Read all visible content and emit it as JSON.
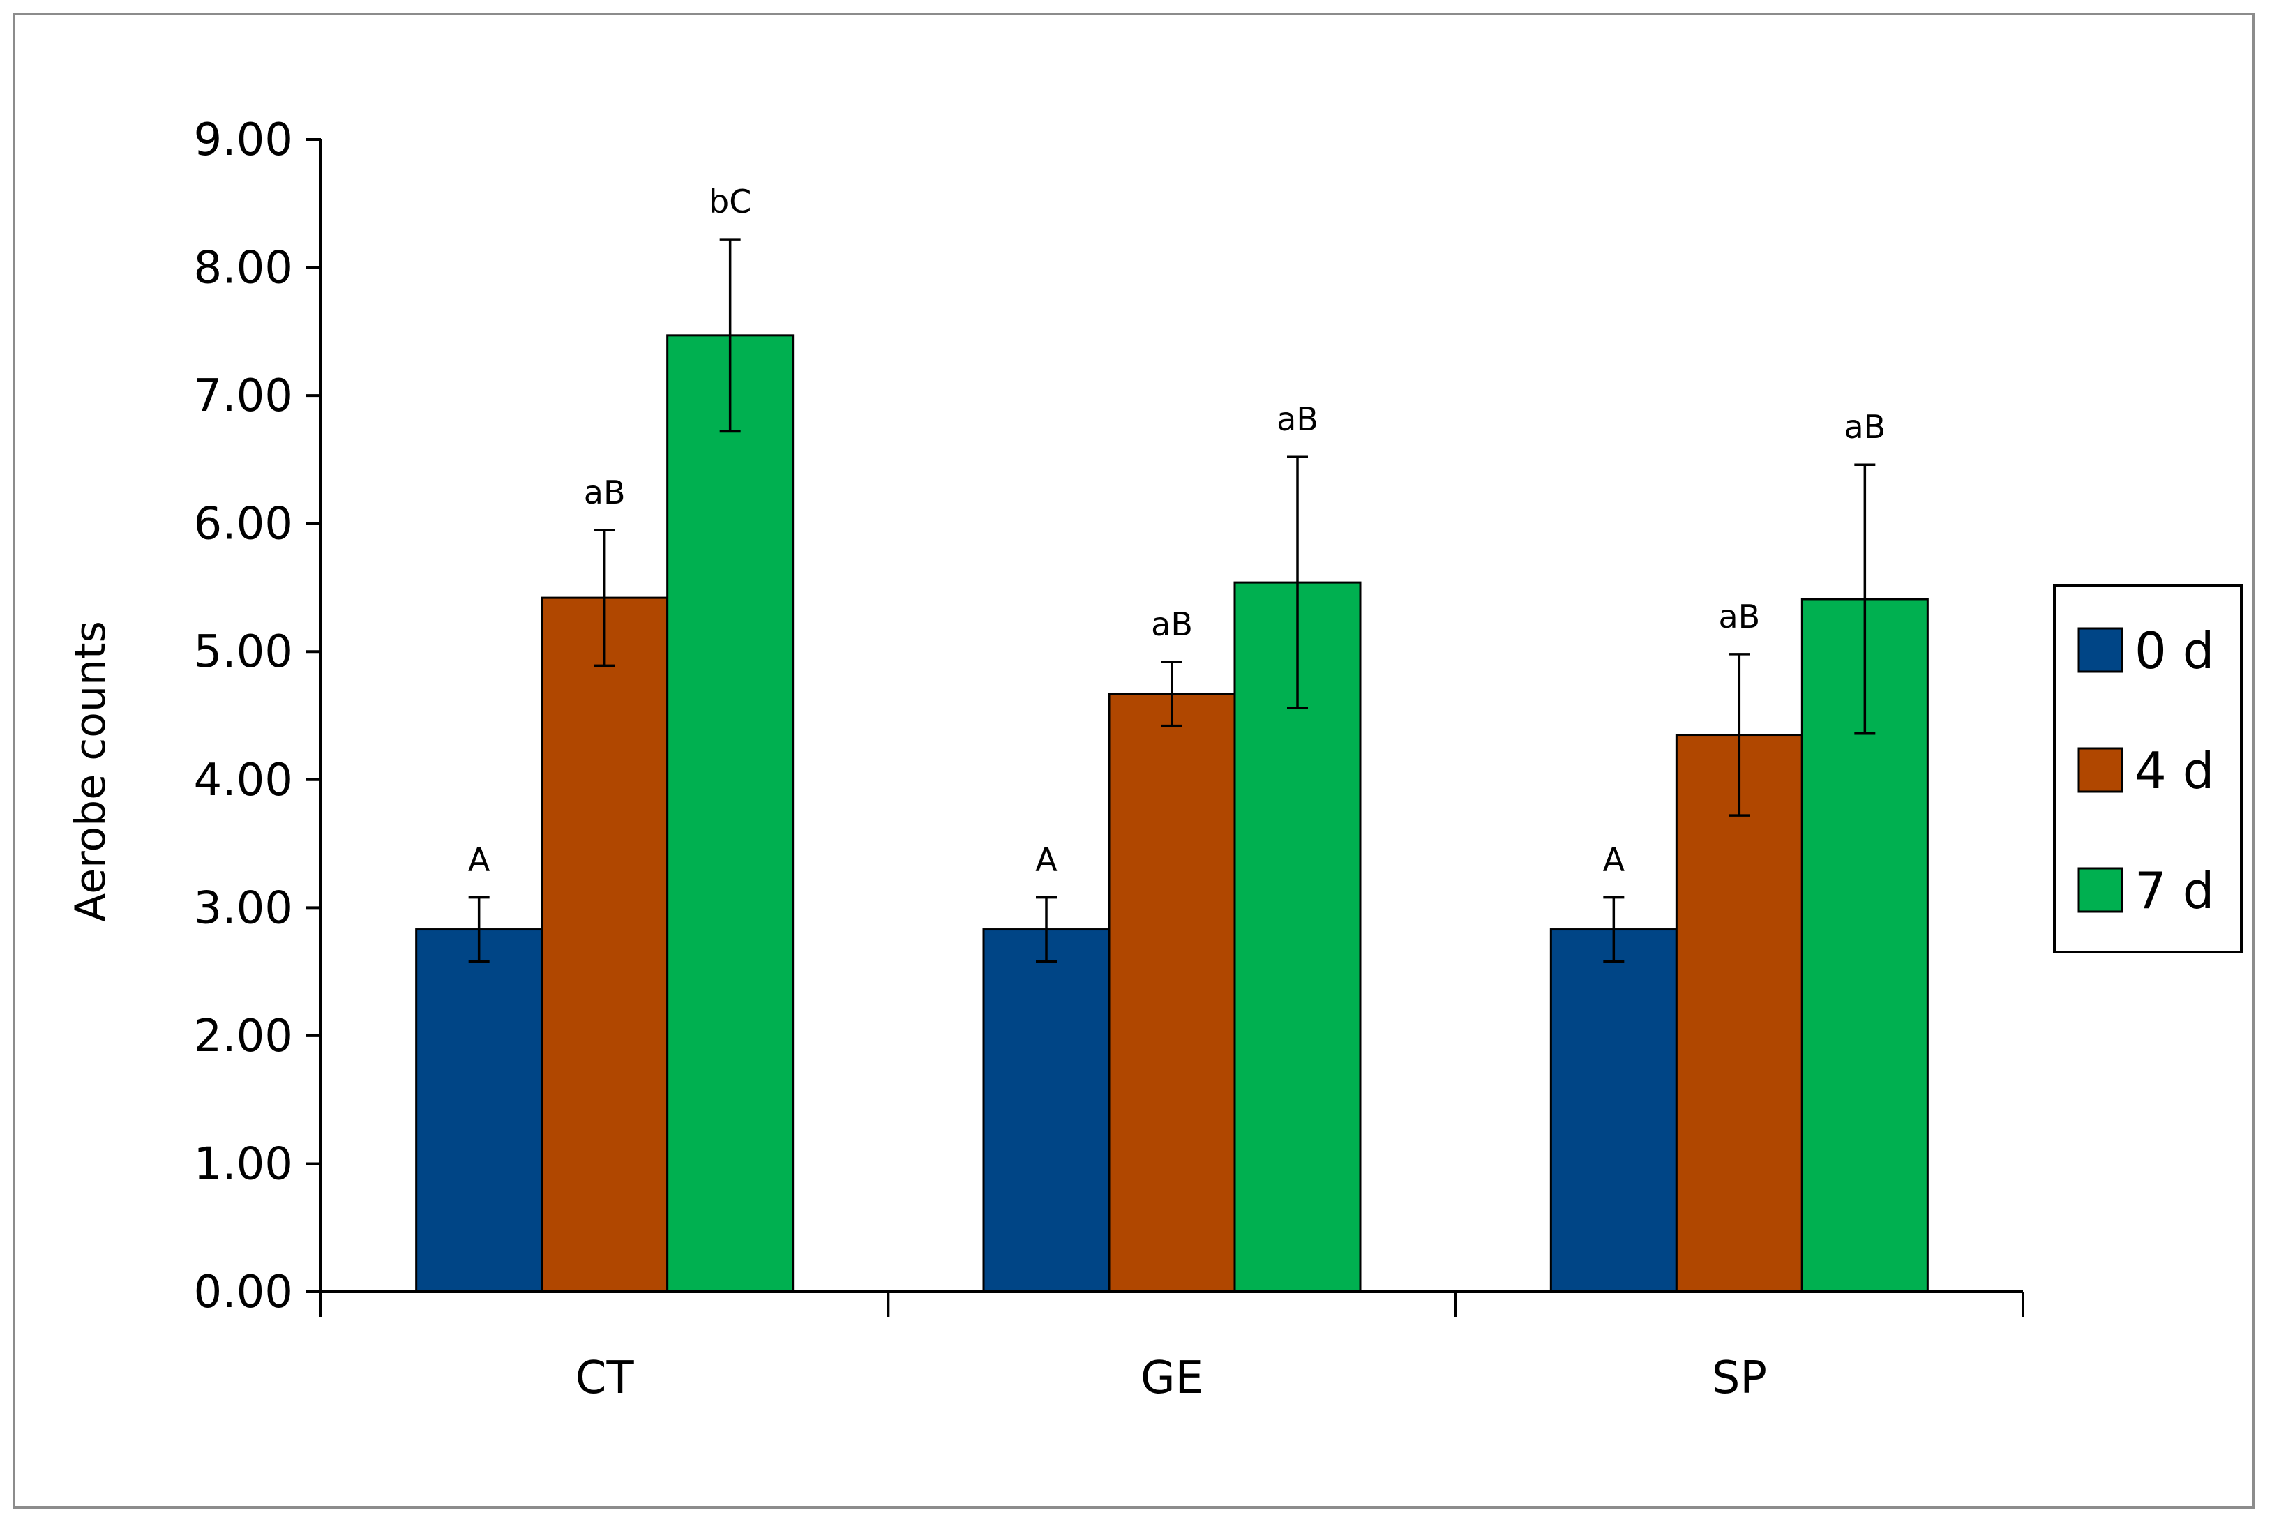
{
  "chart_data": {
    "type": "bar",
    "ylabel": "Aerobe counts",
    "xlabel": "",
    "ylim": [
      0,
      9
    ],
    "yticks": [
      "0.00",
      "1.00",
      "2.00",
      "3.00",
      "4.00",
      "5.00",
      "6.00",
      "7.00",
      "8.00",
      "9.00"
    ],
    "categories": [
      "CT",
      "GE",
      "SP"
    ],
    "series": [
      {
        "name": "0 d",
        "color": "#004586",
        "values": [
          2.83,
          2.83,
          2.83
        ],
        "errors": [
          0.25,
          0.25,
          0.25
        ],
        "labels": [
          "A",
          "A",
          "A"
        ]
      },
      {
        "name": "4 d",
        "color": "#B04700",
        "values": [
          5.42,
          4.67,
          4.35
        ],
        "errors": [
          0.53,
          0.25,
          0.63
        ],
        "labels": [
          "aB",
          "aB",
          "aB"
        ]
      },
      {
        "name": "7 d",
        "color": "#00B050",
        "values": [
          7.47,
          5.54,
          5.41
        ],
        "errors": [
          0.75,
          0.98,
          1.05
        ],
        "labels": [
          "bC",
          "aB",
          "aB"
        ]
      }
    ],
    "grid": false,
    "legend": "right",
    "error_bars": true
  }
}
